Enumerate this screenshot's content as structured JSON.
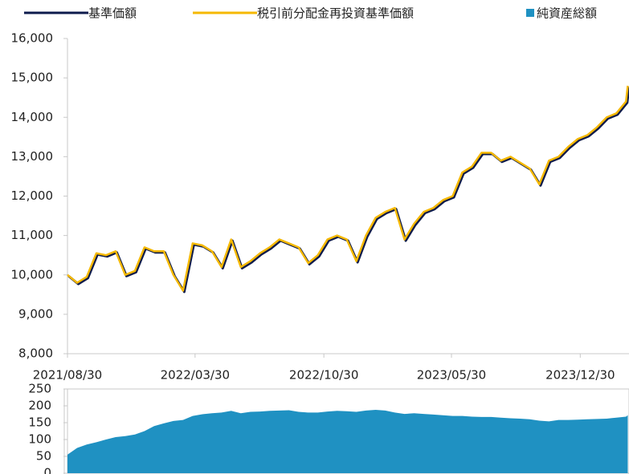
{
  "chart_data": [
    {
      "type": "line",
      "x": [
        "2021/08/30",
        "2021/09/15",
        "2021/10/01",
        "2021/10/17",
        "2021/11/02",
        "2021/11/18",
        "2021/12/04",
        "2021/12/20",
        "2022/01/05",
        "2022/01/21",
        "2022/02/06",
        "2022/02/22",
        "2022/03/10",
        "2022/03/26",
        "2022/04/11",
        "2022/04/27",
        "2022/05/13",
        "2022/05/29",
        "2022/06/14",
        "2022/06/30",
        "2022/07/16",
        "2022/08/01",
        "2022/08/17",
        "2022/09/02",
        "2022/09/18",
        "2022/10/04",
        "2022/10/20",
        "2022/11/05",
        "2022/11/21",
        "2022/12/07",
        "2022/12/23",
        "2023/01/08",
        "2023/01/24",
        "2023/02/09",
        "2023/02/25",
        "2023/03/13",
        "2023/03/29",
        "2023/04/14",
        "2023/04/30",
        "2023/05/16",
        "2023/06/01",
        "2023/06/17",
        "2023/07/03",
        "2023/07/19",
        "2023/08/04",
        "2023/08/20",
        "2023/09/05",
        "2023/09/21",
        "2023/10/07",
        "2023/10/23",
        "2023/11/08",
        "2023/11/24",
        "2023/12/10",
        "2023/12/26",
        "2024/01/11",
        "2024/01/27",
        "2024/02/12",
        "2024/02/28",
        "2024/03/15",
        "2024/03/18"
      ],
      "series": [
        {
          "name": "基準価額",
          "color": "#0d1b4c",
          "values": [
            10000,
            9800,
            9950,
            10550,
            10500,
            10600,
            10000,
            10100,
            10700,
            10600,
            10600,
            10000,
            9600,
            10800,
            10750,
            10600,
            10200,
            10900,
            10200,
            10350,
            10550,
            10700,
            10900,
            10800,
            10700,
            10300,
            10500,
            10900,
            11000,
            10900,
            10350,
            11000,
            11450,
            11600,
            11700,
            10900,
            11300,
            11600,
            11700,
            11900,
            12000,
            12600,
            12750,
            13100,
            13100,
            12900,
            13000,
            12850,
            12700,
            12300,
            12900,
            13000,
            13250,
            13450,
            13550,
            13750,
            14000,
            14100,
            14400,
            14800
          ]
        },
        {
          "name": "税引前分配金再投資基準価額",
          "color": "#f5b800",
          "values": [
            10000,
            9800,
            9950,
            10550,
            10500,
            10600,
            10000,
            10100,
            10700,
            10600,
            10600,
            10000,
            9600,
            10800,
            10750,
            10600,
            10200,
            10900,
            10200,
            10350,
            10550,
            10700,
            10900,
            10800,
            10700,
            10300,
            10500,
            10900,
            11000,
            10900,
            10350,
            11000,
            11450,
            11600,
            11700,
            10900,
            11300,
            11600,
            11700,
            11900,
            12000,
            12600,
            12750,
            13100,
            13100,
            12900,
            13000,
            12850,
            12700,
            12300,
            12900,
            13000,
            13250,
            13450,
            13550,
            13750,
            14000,
            14100,
            14400,
            14800
          ]
        }
      ],
      "xlim": [
        "2021/08/30",
        "2024/03/20"
      ],
      "xticks": [
        "2021/08/30",
        "2022/03/30",
        "2022/10/30",
        "2023/05/30",
        "2023/12/30"
      ],
      "ylim": [
        8000,
        16000
      ],
      "yticks": [
        {
          "value": 8000,
          "label": "8,000"
        },
        {
          "value": 9000,
          "label": "9,000"
        },
        {
          "value": 10000,
          "label": "10,000"
        },
        {
          "value": 11000,
          "label": "11,000"
        },
        {
          "value": 12000,
          "label": "12,000"
        },
        {
          "value": 13000,
          "label": "13,000"
        },
        {
          "value": 14000,
          "label": "14,000"
        },
        {
          "value": 15000,
          "label": "15,000"
        },
        {
          "value": 16000,
          "label": "16,000"
        }
      ]
    },
    {
      "type": "area",
      "x": [
        "2021/08/30",
        "2021/09/15",
        "2021/10/01",
        "2021/10/17",
        "2021/11/02",
        "2021/11/18",
        "2021/12/04",
        "2021/12/20",
        "2022/01/05",
        "2022/01/21",
        "2022/02/06",
        "2022/02/22",
        "2022/03/10",
        "2022/03/26",
        "2022/04/11",
        "2022/04/27",
        "2022/05/13",
        "2022/05/29",
        "2022/06/14",
        "2022/06/30",
        "2022/07/16",
        "2022/08/01",
        "2022/08/17",
        "2022/09/02",
        "2022/09/18",
        "2022/10/04",
        "2022/10/20",
        "2022/11/05",
        "2022/11/21",
        "2022/12/07",
        "2022/12/23",
        "2023/01/08",
        "2023/01/24",
        "2023/02/09",
        "2023/02/25",
        "2023/03/13",
        "2023/03/29",
        "2023/04/14",
        "2023/04/30",
        "2023/05/16",
        "2023/06/01",
        "2023/06/17",
        "2023/07/03",
        "2023/07/19",
        "2023/08/04",
        "2023/08/20",
        "2023/09/05",
        "2023/09/21",
        "2023/10/07",
        "2023/10/23",
        "2023/11/08",
        "2023/11/24",
        "2023/12/10",
        "2023/12/26",
        "2024/01/11",
        "2024/01/27",
        "2024/02/12",
        "2024/02/28",
        "2024/03/15",
        "2024/03/18"
      ],
      "series": [
        {
          "name": "純資産総額",
          "color": "#1f91c2",
          "values": [
            55,
            75,
            85,
            92,
            100,
            107,
            110,
            115,
            125,
            140,
            148,
            155,
            158,
            170,
            175,
            178,
            180,
            185,
            178,
            182,
            183,
            185,
            186,
            187,
            182,
            180,
            180,
            183,
            185,
            184,
            182,
            186,
            188,
            186,
            180,
            176,
            178,
            176,
            174,
            172,
            170,
            170,
            168,
            167,
            167,
            165,
            163,
            162,
            160,
            156,
            154,
            158,
            158,
            159,
            160,
            161,
            162,
            165,
            168,
            172
          ]
        }
      ],
      "xlim": [
        "2021/08/30",
        "2024/03/20"
      ],
      "ylim": [
        0,
        250
      ],
      "yticks": [
        0,
        50,
        100,
        150,
        200,
        250
      ]
    }
  ]
}
